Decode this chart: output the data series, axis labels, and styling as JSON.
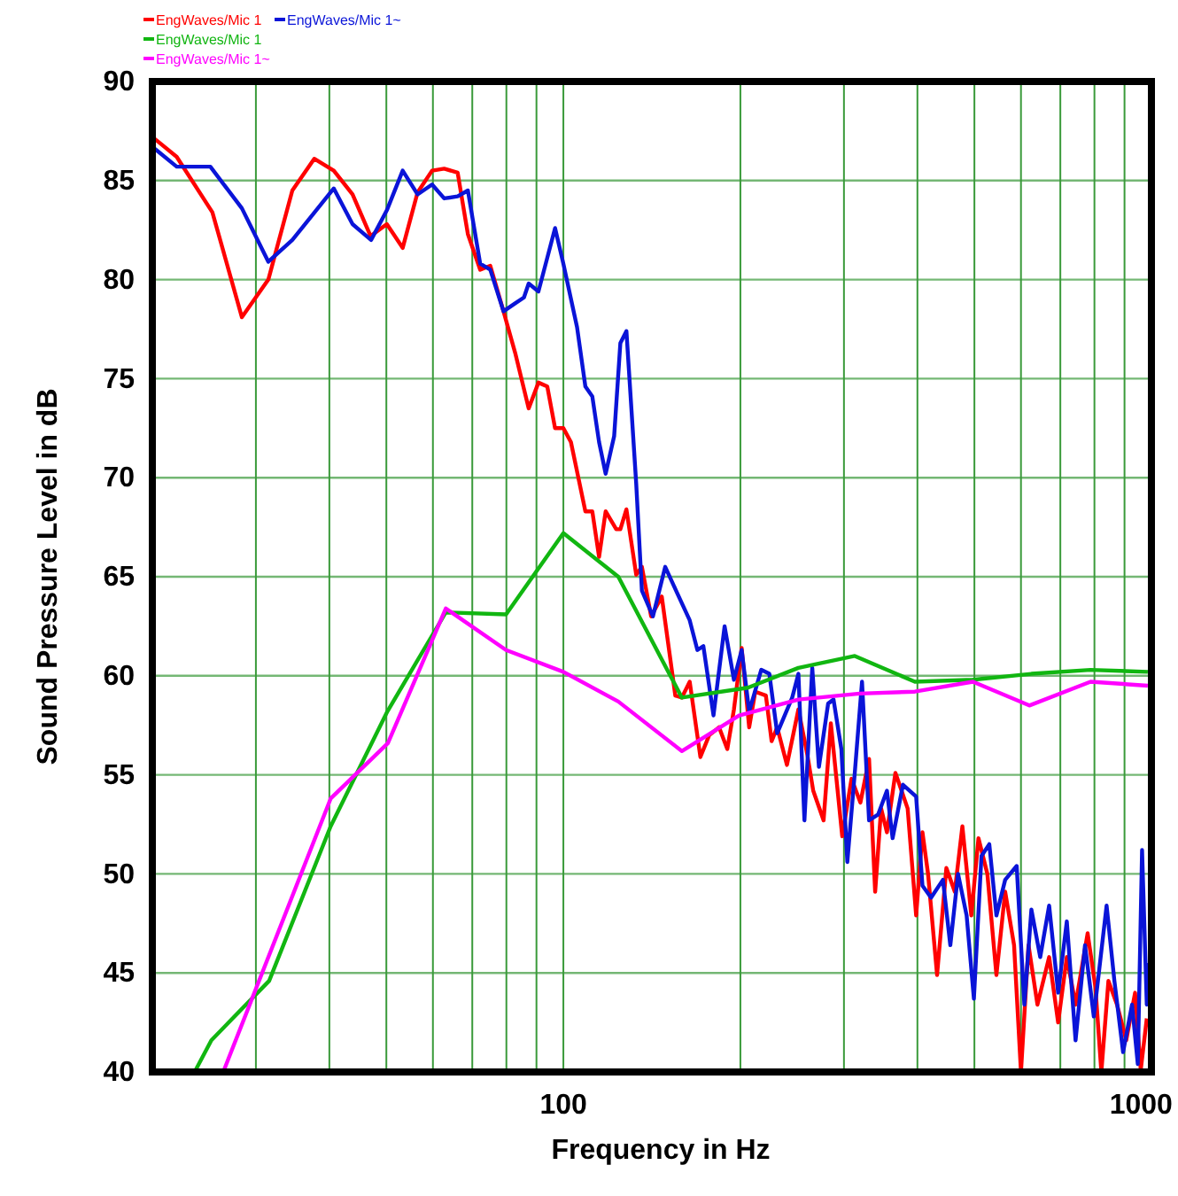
{
  "chart_data": {
    "type": "line",
    "xlabel": "Frequency in Hz",
    "ylabel": "Sound Pressure Level in dB",
    "log": "x",
    "grid": true,
    "legend": "top left",
    "xlim": [
      20,
      1000
    ],
    "ylim": [
      40,
      90
    ],
    "xticks": [
      {
        "value": 20,
        "label": null
      },
      {
        "value": 30,
        "label": null
      },
      {
        "value": 40,
        "label": null
      },
      {
        "value": 50,
        "label": null
      },
      {
        "value": 60,
        "label": null
      },
      {
        "value": 70,
        "label": null
      },
      {
        "value": 80,
        "label": null
      },
      {
        "value": 90,
        "label": null
      },
      100,
      {
        "value": 200,
        "label": null
      },
      {
        "value": 300,
        "label": null
      },
      {
        "value": 400,
        "label": null
      },
      {
        "value": 500,
        "label": null
      },
      {
        "value": 600,
        "label": null
      },
      {
        "value": 700,
        "label": null
      },
      {
        "value": 800,
        "label": null
      },
      {
        "value": 900,
        "label": null
      },
      1000
    ],
    "yticks": [
      40,
      45,
      50,
      55,
      60,
      65,
      70,
      75,
      80,
      85,
      90
    ],
    "series": [
      {
        "name": "EngWaves/Mic 1",
        "color": "#ff0000",
        "x": [
          20.2,
          22,
          25.3,
          28.4,
          31.5,
          34.6,
          37.7,
          40.7,
          43.8,
          47,
          50.1,
          53.3,
          56.5,
          59.8,
          62.7,
          66.1,
          68.8,
          72.2,
          75.1,
          79.1,
          82.8,
          87.3,
          90.7,
          93.9,
          96.8,
          100,
          103,
          109,
          112,
          115,
          118,
          123,
          125,
          128,
          133,
          136,
          141,
          147,
          155,
          159,
          164,
          171,
          177,
          184,
          190,
          195,
          201,
          207,
          212,
          221,
          226,
          231,
          240,
          251,
          260,
          266,
          277,
          285,
          298,
          309,
          320,
          331,
          339,
          347,
          355,
          367,
          385,
          398,
          408,
          417,
          432,
          448,
          463,
          477,
          494,
          508,
          526,
          545,
          564,
          584,
          600,
          618,
          640,
          670,
          694,
          718,
          743,
          779,
          803,
          822,
          845,
          874,
          906,
          938,
          959,
          982
        ],
        "values": [
          87.1,
          86.2,
          83.4,
          78.1,
          80,
          84.5,
          86.1,
          85.5,
          84.3,
          82.2,
          82.8,
          81.6,
          84.4,
          85.5,
          85.6,
          85.4,
          82.3,
          80.5,
          80.7,
          78.4,
          76.3,
          73.5,
          74.8,
          74.6,
          72.5,
          72.5,
          71.8,
          68.3,
          68.3,
          66,
          68.3,
          67.4,
          67.4,
          68.4,
          65.1,
          65.5,
          63,
          64,
          59,
          58.9,
          59.7,
          55.9,
          57,
          57.4,
          56.3,
          58.3,
          61.4,
          57.4,
          59.2,
          59,
          56.7,
          57.4,
          55.5,
          58.3,
          56,
          54.2,
          52.7,
          57.6,
          51.9,
          54.8,
          53.6,
          55.8,
          49.1,
          53.3,
          52.1,
          55.1,
          53.3,
          47.9,
          52.1,
          50,
          44.9,
          50.3,
          49.1,
          52.4,
          47.9,
          51.8,
          50,
          44.9,
          49.1,
          46.4,
          40,
          46.4,
          43.4,
          45.8,
          42.5,
          45.8,
          43.4,
          47,
          44.3,
          40,
          44.6,
          43.4,
          41.6,
          44,
          40.1,
          42.7
        ]
      },
      {
        "name": "EngWaves/Mic 1~",
        "color": "#0a14d8",
        "x": [
          20.2,
          22,
          25.1,
          28.4,
          31.5,
          34.6,
          40.7,
          43.8,
          47.1,
          50.1,
          53.3,
          56.5,
          59.8,
          62.7,
          66.1,
          68.8,
          72.2,
          75.1,
          79.1,
          82.8,
          85.7,
          87.3,
          90.7,
          96.8,
          100,
          105.5,
          109,
          112,
          115,
          118,
          122,
          125,
          128,
          133,
          136,
          142,
          149,
          156,
          164,
          169,
          173,
          180,
          188,
          195,
          201,
          207,
          217,
          224,
          231,
          245,
          251,
          257,
          265,
          272,
          282,
          288,
          297,
          304,
          313,
          322,
          331,
          343,
          355,
          363,
          378,
          398,
          408,
          422,
          442,
          455,
          469,
          485,
          499,
          514,
          530,
          545,
          564,
          590,
          608,
          625,
          647,
          670,
          694,
          718,
          743,
          771,
          798,
          839,
          865,
          895,
          927,
          948,
          964,
          982,
          989
        ],
        "values": [
          86.6,
          85.7,
          85.7,
          83.6,
          80.9,
          82,
          84.6,
          82.8,
          82,
          83.5,
          85.5,
          84.3,
          84.8,
          84.1,
          84.2,
          84.5,
          80.8,
          80.5,
          78.4,
          78.8,
          79.1,
          79.8,
          79.4,
          82.6,
          80.8,
          77.6,
          74.6,
          74.1,
          71.8,
          70.2,
          72.1,
          76.8,
          77.4,
          69.7,
          64.3,
          63,
          65.5,
          64.2,
          62.8,
          61.3,
          61.5,
          58,
          62.5,
          59.8,
          61.3,
          58.2,
          60.3,
          60.1,
          57.1,
          58.9,
          60.1,
          52.7,
          60.4,
          55.4,
          58.6,
          58.8,
          56.3,
          50.6,
          55.1,
          59.7,
          52.7,
          53,
          54.2,
          51.8,
          54.5,
          53.9,
          49.4,
          48.8,
          49.7,
          46.4,
          50,
          47.9,
          43.7,
          50.9,
          51.5,
          47.9,
          49.7,
          50.4,
          43.4,
          48.2,
          45.8,
          48.4,
          44,
          47.6,
          41.6,
          46.4,
          42.8,
          48.4,
          44.6,
          41,
          43.4,
          40.4,
          51.2,
          43.4,
          45.5
        ]
      },
      {
        "name": "EngWaves/Mic 1",
        "color": "#11b611",
        "x": [
          23.6,
          25.2,
          31.6,
          40.2,
          50.2,
          63.1,
          79.9,
          100,
          124,
          159,
          206,
          251,
          313,
          396,
          497,
          625,
          788,
          986
        ],
        "values": [
          40,
          41.6,
          44.6,
          52.4,
          58.2,
          63.2,
          63.1,
          67.2,
          65,
          58.9,
          59.4,
          60.4,
          61,
          59.7,
          59.8,
          60.1,
          60.3,
          60.2
        ]
      },
      {
        "name": "EngWaves/Mic 1~",
        "color": "#ff00ff",
        "x": [
          26.4,
          40.2,
          50.3,
          63.1,
          79.9,
          100,
          124,
          159,
          199,
          251,
          319,
          396,
          497,
          620,
          788,
          986
        ],
        "values": [
          40,
          53.8,
          56.6,
          63.4,
          61.3,
          60.2,
          58.7,
          56.2,
          58,
          58.8,
          59.1,
          59.2,
          59.7,
          58.5,
          59.7,
          59.5
        ]
      }
    ]
  }
}
